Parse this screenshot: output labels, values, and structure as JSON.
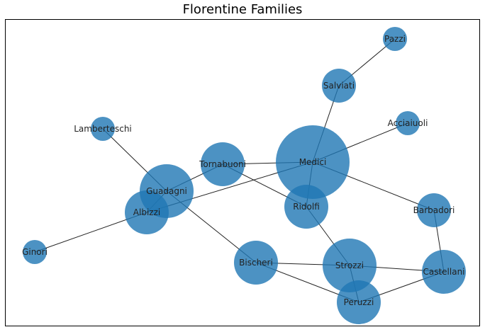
{
  "title": "Florentine Families",
  "graph": {
    "node_color": "#1f77b4",
    "edge_color": "#222222",
    "nodes": [
      {
        "id": "acciaiuoli",
        "label": "Acciaiuoli",
        "degree": 1
      },
      {
        "id": "medici",
        "label": "Medici",
        "degree": 6
      },
      {
        "id": "castellani",
        "label": "Castellani",
        "degree": 3
      },
      {
        "id": "peruzzi",
        "label": "Peruzzi",
        "degree": 3
      },
      {
        "id": "strozzi",
        "label": "Strozzi",
        "degree": 4
      },
      {
        "id": "barbadori",
        "label": "Barbadori",
        "degree": 2
      },
      {
        "id": "ridolfi",
        "label": "Ridolfi",
        "degree": 3
      },
      {
        "id": "tornabuoni",
        "label": "Tornabuoni",
        "degree": 3
      },
      {
        "id": "albizzi",
        "label": "Albizzi",
        "degree": 3
      },
      {
        "id": "salviati",
        "label": "Salviati",
        "degree": 2
      },
      {
        "id": "pazzi",
        "label": "Pazzi",
        "degree": 1
      },
      {
        "id": "bischeri",
        "label": "Bischeri",
        "degree": 3
      },
      {
        "id": "guadagni",
        "label": "Guadagni",
        "degree": 4
      },
      {
        "id": "ginori",
        "label": "Ginori",
        "degree": 1
      },
      {
        "id": "lamberteschi",
        "label": "Lamberteschi",
        "degree": 1
      }
    ],
    "edges": [
      [
        "acciaiuoli",
        "medici"
      ],
      [
        "medici",
        "barbadori"
      ],
      [
        "medici",
        "ridolfi"
      ],
      [
        "medici",
        "tornabuoni"
      ],
      [
        "medici",
        "albizzi"
      ],
      [
        "medici",
        "salviati"
      ],
      [
        "castellani",
        "peruzzi"
      ],
      [
        "castellani",
        "strozzi"
      ],
      [
        "castellani",
        "barbadori"
      ],
      [
        "peruzzi",
        "strozzi"
      ],
      [
        "peruzzi",
        "bischeri"
      ],
      [
        "strozzi",
        "ridolfi"
      ],
      [
        "strozzi",
        "bischeri"
      ],
      [
        "ridolfi",
        "tornabuoni"
      ],
      [
        "tornabuoni",
        "guadagni"
      ],
      [
        "albizzi",
        "ginori"
      ],
      [
        "albizzi",
        "guadagni"
      ],
      [
        "salviati",
        "pazzi"
      ],
      [
        "bischeri",
        "guadagni"
      ],
      [
        "guadagni",
        "lamberteschi"
      ]
    ]
  }
}
